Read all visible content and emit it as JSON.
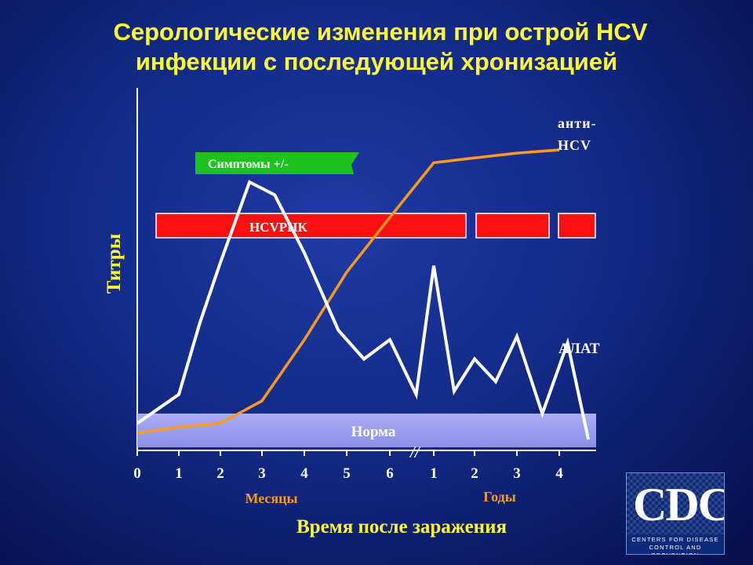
{
  "title_line1": "Серологические изменения при острой HCV",
  "title_line2": "инфекции с последующей хронизацией",
  "colors": {
    "title": "#ffff33",
    "anti_hcv": "#ff9a1f",
    "alat": "#ffffff",
    "hcv_rnk": "#ff1010",
    "symptoms": "#1ec21e",
    "norma": "#9a9ef0"
  },
  "chart_data": {
    "type": "line",
    "ylabel": "Титры",
    "xlabel": "Время после заражения",
    "x_group_months": "Месяцы",
    "x_group_years": "Годы",
    "x_tick_labels": [
      "0",
      "1",
      "2",
      "3",
      "4",
      "5",
      "6",
      "1",
      "2",
      "3",
      "4"
    ],
    "x_break_marker": "//",
    "series": [
      {
        "name": "анти-HCV",
        "label_lines": [
          "анти-",
          "HCV"
        ],
        "x": [
          0,
          1,
          2,
          3,
          4,
          5,
          6,
          7,
          8,
          9,
          10
        ],
        "values": [
          2,
          3.8,
          5,
          12,
          31,
          52,
          69,
          86,
          87.5,
          89,
          90
        ]
      },
      {
        "name": "АЛАТ",
        "label_lines": [
          "АЛАТ"
        ],
        "x": [
          0,
          0.5,
          1,
          1.5,
          2,
          2.7,
          3.3,
          4,
          4.8,
          5.4,
          6,
          6.6,
          7.0,
          7.5,
          8.0,
          8.5,
          9.0,
          9.6,
          10.2,
          10.7
        ],
        "values": [
          5,
          9.5,
          14,
          36,
          55,
          80,
          76,
          58,
          34,
          25,
          31,
          14,
          54,
          15,
          25,
          18,
          32,
          8,
          30,
          0
        ]
      }
    ],
    "bands": {
      "symptoms_label": "Симптомы +/-",
      "hcv_rnk_label": "HCVРНК",
      "norma_label": "Норма"
    }
  },
  "logo": {
    "mark": "CDC",
    "line1": "CENTERS FOR DISEASE",
    "line2": "CONTROL AND PREVENTION"
  }
}
